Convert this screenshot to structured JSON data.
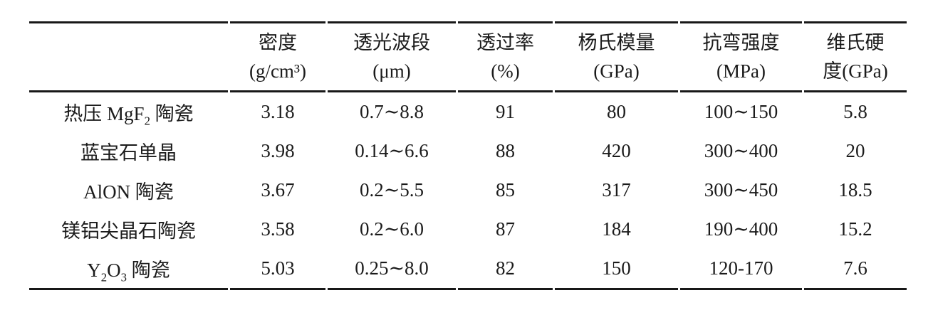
{
  "colors": {
    "background": "#ffffff",
    "text": "#1b1b1b",
    "rule": "#181818"
  },
  "table": {
    "columns": [
      {
        "line1": "",
        "line2": ""
      },
      {
        "line1": "密度",
        "line2": "(g/cm³)"
      },
      {
        "line1": "透光波段",
        "line2": "(μm)"
      },
      {
        "line1": "透过率",
        "line2": "(%)"
      },
      {
        "line1": "杨氏模量",
        "line2": "(GPa)"
      },
      {
        "line1": "抗弯强度",
        "line2": "(MPa)"
      },
      {
        "line1": "维氏硬",
        "line2": "度(GPa)"
      }
    ],
    "rows": [
      {
        "material": [
          {
            "t": "热压 MgF"
          },
          {
            "t": "2",
            "sub": true
          },
          {
            "t": " 陶瓷"
          }
        ],
        "values": [
          "3.18",
          "0.7∼8.8",
          "91",
          "80",
          "100∼150",
          "5.8"
        ]
      },
      {
        "material": [
          {
            "t": "蓝宝石单晶"
          }
        ],
        "values": [
          "3.98",
          "0.14∼6.6",
          "88",
          "420",
          "300∼400",
          "20"
        ]
      },
      {
        "material": [
          {
            "t": "AlON 陶瓷"
          }
        ],
        "values": [
          "3.67",
          "0.2∼5.5",
          "85",
          "317",
          "300∼450",
          "18.5"
        ]
      },
      {
        "material": [
          {
            "t": "镁铝尖晶石陶瓷"
          }
        ],
        "values": [
          "3.58",
          "0.2∼6.0",
          "87",
          "184",
          "190∼400",
          "15.2"
        ]
      },
      {
        "material": [
          {
            "t": "Y"
          },
          {
            "t": "2",
            "sub": true
          },
          {
            "t": "O"
          },
          {
            "t": "3",
            "sub": true
          },
          {
            "t": " 陶瓷"
          }
        ],
        "values": [
          "5.03",
          "0.25∼8.0",
          "82",
          "150",
          "120-170",
          "7.6"
        ]
      }
    ]
  },
  "chart_data": {
    "type": "table",
    "columns": [
      "",
      "密度 (g/cm³)",
      "透光波段 (μm)",
      "透过率 (%)",
      "杨氏模量 (GPa)",
      "抗弯强度 (MPa)",
      "维氏硬度(GPa)"
    ],
    "rows": [
      [
        "热压 MgF₂ 陶瓷",
        "3.18",
        "0.7∼8.8",
        "91",
        "80",
        "100∼150",
        "5.8"
      ],
      [
        "蓝宝石单晶",
        "3.98",
        "0.14∼6.6",
        "88",
        "420",
        "300∼400",
        "20"
      ],
      [
        "AlON 陶瓷",
        "3.67",
        "0.2∼5.5",
        "85",
        "317",
        "300∼450",
        "18.5"
      ],
      [
        "镁铝尖晶石陶瓷",
        "3.58",
        "0.2∼6.0",
        "87",
        "184",
        "190∼400",
        "15.2"
      ],
      [
        "Y₂O₃ 陶瓷",
        "5.03",
        "0.25∼8.0",
        "82",
        "150",
        "120-170",
        "7.6"
      ]
    ]
  }
}
